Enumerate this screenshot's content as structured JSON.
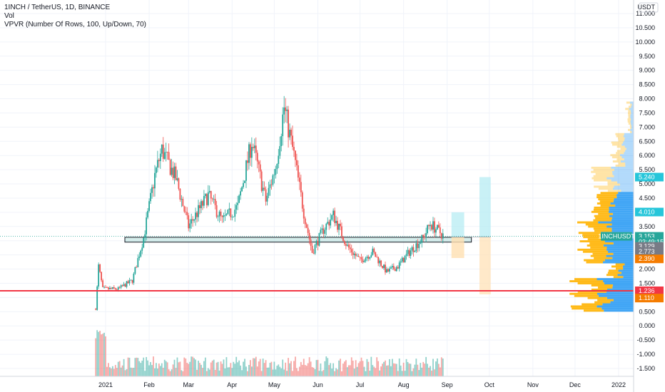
{
  "legend": {
    "symbol_line": "1INCH / TetherUS, 1D, BINANCE",
    "vol_label": "Vol",
    "vpvr_label": "VPVR (Number Of Rows, 100, Up/Down, 70)"
  },
  "currency_label": "USDT",
  "colors": {
    "up": "#26a69a",
    "down": "#ef5350",
    "profile_up": "#2196f3",
    "profile_down": "#ffb300",
    "support_line": "#f23645",
    "zone_fill": "#b2dfdb",
    "target_fill": "#b2ebf2",
    "stop_fill": "#ffe0b2"
  },
  "chart_data": {
    "type": "candlestick",
    "y_axis": {
      "ticks": [
        "11.000",
        "10.500",
        "10.000",
        "9.500",
        "9.000",
        "8.500",
        "8.000",
        "7.500",
        "7.000",
        "6.500",
        "6.000",
        "5.500",
        "5.000",
        "4.500",
        "4.000",
        "3.500",
        "3.000",
        "2.500",
        "2.000",
        "1.500",
        "1.000",
        "0.500",
        "0.000",
        "-0.500",
        "-1.000",
        "-1.500"
      ],
      "range": [
        -1.8,
        11.2
      ]
    },
    "x_axis": {
      "ticks": [
        "2021",
        "Feb",
        "Mar",
        "Apr",
        "May",
        "Jun",
        "Jul",
        "Aug",
        "Sep",
        "Oct",
        "Nov",
        "Dec",
        "2022"
      ]
    },
    "price_path": [
      {
        "m": "2020-12-25",
        "p": 0.6
      },
      {
        "m": "2020-12-27",
        "p": 2.1
      },
      {
        "m": "2020-12-30",
        "p": 1.3
      },
      {
        "m": "2021-01-10",
        "p": 1.3
      },
      {
        "m": "2021-01-20",
        "p": 1.6
      },
      {
        "m": "2021-01-28",
        "p": 3.1
      },
      {
        "m": "2021-02-05",
        "p": 5.3
      },
      {
        "m": "2021-02-10",
        "p": 6.2
      },
      {
        "m": "2021-02-20",
        "p": 5.2
      },
      {
        "m": "2021-03-01",
        "p": 3.5
      },
      {
        "m": "2021-03-15",
        "p": 4.6
      },
      {
        "m": "2021-03-25",
        "p": 3.7
      },
      {
        "m": "2021-04-05",
        "p": 4.2
      },
      {
        "m": "2021-04-15",
        "p": 6.5
      },
      {
        "m": "2021-04-25",
        "p": 4.4
      },
      {
        "m": "2021-05-02",
        "p": 5.6
      },
      {
        "m": "2021-05-08",
        "p": 7.7
      },
      {
        "m": "2021-05-15",
        "p": 6.0
      },
      {
        "m": "2021-05-22",
        "p": 4.0
      },
      {
        "m": "2021-05-28",
        "p": 2.6
      },
      {
        "m": "2021-06-05",
        "p": 3.4
      },
      {
        "m": "2021-06-12",
        "p": 3.9
      },
      {
        "m": "2021-06-22",
        "p": 2.8
      },
      {
        "m": "2021-07-01",
        "p": 2.3
      },
      {
        "m": "2021-07-10",
        "p": 2.6
      },
      {
        "m": "2021-07-20",
        "p": 1.9
      },
      {
        "m": "2021-07-28",
        "p": 2.1
      },
      {
        "m": "2021-08-05",
        "p": 2.6
      },
      {
        "m": "2021-08-15",
        "p": 3.1
      },
      {
        "m": "2021-08-20",
        "p": 3.6
      },
      {
        "m": "2021-08-30",
        "p": 3.15
      }
    ],
    "support_zone": {
      "from": "2021-01-01",
      "to": "2021-09-01",
      "low": 2.95,
      "high": 3.12
    },
    "support_line": {
      "value": 1.236
    },
    "position": {
      "entry": 3.129,
      "target": 5.24,
      "stop": 1.11,
      "from": "2021-09-24",
      "to": "2021-10-02",
      "zone_from": "2021-08-31",
      "zone_to": "2021-09-05",
      "zone_target": 4.0,
      "zone_stop": 2.39
    },
    "price_tags": [
      {
        "label": "USDT",
        "value": 11.3,
        "kind": "header"
      },
      {
        "label": "5.240",
        "value": 5.24,
        "kind": "target"
      },
      {
        "label": "4.010",
        "value": 4.01,
        "kind": "target"
      },
      {
        "label": "1INCHUSDT",
        "value": 3.153,
        "kind": "name"
      },
      {
        "label": "3.153",
        "value": 3.153,
        "kind": "last"
      },
      {
        "label": "03:49:15",
        "value": 2.96,
        "kind": "countdown"
      },
      {
        "label": "3.129",
        "value": 2.8,
        "kind": "entry"
      },
      {
        "label": "2.773",
        "value": 2.62,
        "kind": "entry"
      },
      {
        "label": "2.390",
        "value": 2.36,
        "kind": "stop"
      },
      {
        "label": "1.236",
        "value": 1.236,
        "kind": "support"
      },
      {
        "label": "1.110",
        "value": 0.98,
        "kind": "stop"
      }
    ]
  }
}
